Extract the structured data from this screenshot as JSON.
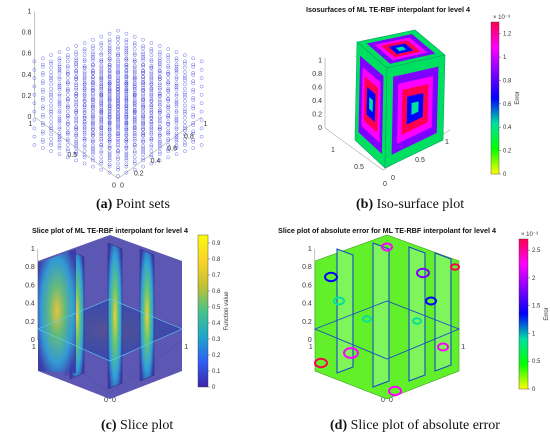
{
  "captions": {
    "a": {
      "label": "(a)",
      "text": " Point sets"
    },
    "b": {
      "label": "(b)",
      "text": " Iso-surface plot"
    },
    "c": {
      "label": "(c)",
      "text": " Slice plot"
    },
    "d": {
      "label": "(d)",
      "text": " Slice plot of absolute error"
    }
  },
  "chart_data": [
    {
      "id": "a",
      "type": "scatter",
      "title": "",
      "grid_points_per_axis": 11,
      "marker": "open-circle",
      "color": "#2b2bd6",
      "axes": {
        "z_ticks": [
          "0",
          "0.2",
          "0.4",
          "0.6",
          "0.8",
          "1"
        ],
        "x_ticks": [
          "0",
          "0.5",
          "1"
        ],
        "y_ticks": [
          "0",
          "0.2",
          "0.4",
          "0.6",
          "0.8",
          "1"
        ]
      }
    },
    {
      "id": "b",
      "type": "heatmap",
      "title": "Isosurfaces of ML TE-RBF interpolant for level 4",
      "colorbar": {
        "label": "Error",
        "exponent": "× 10⁻³",
        "ticks": [
          "0",
          "0.2",
          "0.4",
          "0.6",
          "0.8",
          "1",
          "1.2"
        ],
        "range": [
          0,
          1.3
        ]
      },
      "axes": {
        "z_ticks": [
          "0",
          "0.2",
          "0.4",
          "0.6",
          "0.8",
          "1"
        ],
        "x_ticks": [
          "0",
          "0.5",
          "1"
        ],
        "y_ticks": [
          "0",
          "0.5",
          "1"
        ]
      }
    },
    {
      "id": "c",
      "type": "heatmap",
      "title": "Slice plot of ML TE-RBF interpolant for level 4",
      "colorbar": {
        "label": "Function value",
        "ticks": [
          "0",
          "0.1",
          "0.2",
          "0.3",
          "0.4",
          "0.5",
          "0.6",
          "0.7",
          "0.8",
          "0.9"
        ],
        "range": [
          0,
          0.95
        ]
      },
      "axes": {
        "z_ticks": [
          "0",
          "0.2",
          "0.4",
          "0.6",
          "0.8",
          "1"
        ],
        "x_ticks": [
          "0",
          "0.5",
          "1"
        ],
        "y_ticks": [
          "0",
          "0.5",
          "1"
        ]
      }
    },
    {
      "id": "d",
      "type": "heatmap",
      "title": "Slice plot of absolute error for ML TE-RBF interpolant for level 4",
      "colorbar": {
        "label": "Error",
        "exponent": "× 10⁻³",
        "ticks": [
          "0",
          "0.5",
          "1",
          "1.5",
          "2",
          "2.5"
        ],
        "range": [
          0,
          2.7
        ]
      },
      "axes": {
        "z_ticks": [
          "0",
          "0.2",
          "0.4",
          "0.6",
          "0.8",
          "1"
        ],
        "x_ticks": [
          "0",
          "0.5",
          "1"
        ],
        "y_ticks": [
          "0",
          "0.5",
          "1"
        ]
      }
    }
  ],
  "colormaps": {
    "error": [
      "#ffff00",
      "#00ff00",
      "#00e0a0",
      "#0000ff",
      "#8000ff",
      "#ff00ff",
      "#ff0050"
    ],
    "parula": [
      "#3e26a8",
      "#2f5ef5",
      "#1fa7c9",
      "#47c48a",
      "#c5c032",
      "#fbd52a",
      "#f9fb0e"
    ]
  }
}
